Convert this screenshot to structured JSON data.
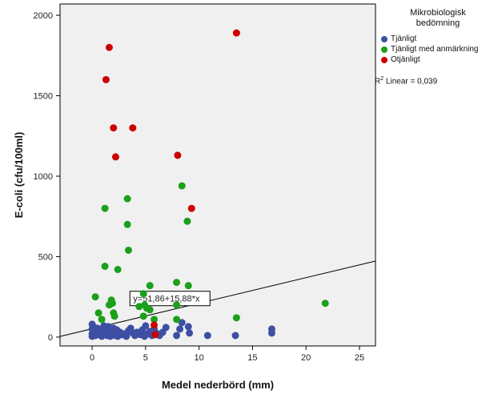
{
  "chart_data": {
    "type": "scatter",
    "xlabel": "Medel nederbörd (mm)",
    "ylabel": "E-coli (cfu/100ml)",
    "xlim": [
      -3,
      26.5
    ],
    "ylim": [
      -55,
      2070
    ],
    "xticks": [
      0,
      5,
      10,
      15,
      20,
      25
    ],
    "yticks": [
      0,
      500,
      1000,
      1500,
      2000
    ],
    "grid": false,
    "legend_placement": "right",
    "legend": {
      "title_line1": "Mikrobiologisk",
      "title_line2": "bedömning"
    },
    "series": [
      {
        "name": "Tjänligt",
        "color": "#3d4fa3",
        "points": [
          [
            0,
            80
          ],
          [
            0,
            50
          ],
          [
            0,
            20
          ],
          [
            0,
            5
          ],
          [
            0.1,
            40
          ],
          [
            0.2,
            60
          ],
          [
            0.3,
            10
          ],
          [
            0.4,
            30
          ],
          [
            0.5,
            55
          ],
          [
            0.6,
            15
          ],
          [
            0.7,
            45
          ],
          [
            0.8,
            25
          ],
          [
            0.9,
            5
          ],
          [
            1.0,
            35
          ],
          [
            1.1,
            70
          ],
          [
            1.2,
            20
          ],
          [
            1.3,
            50
          ],
          [
            1.4,
            10
          ],
          [
            1.5,
            65
          ],
          [
            1.6,
            30
          ],
          [
            1.7,
            5
          ],
          [
            1.8,
            40
          ],
          [
            1.9,
            15
          ],
          [
            2.0,
            55
          ],
          [
            2.1,
            25
          ],
          [
            2.2,
            10
          ],
          [
            2.3,
            45
          ],
          [
            2.4,
            5
          ],
          [
            2.6,
            30
          ],
          [
            2.8,
            15
          ],
          [
            3.0,
            20
          ],
          [
            3.2,
            5
          ],
          [
            3.4,
            40
          ],
          [
            3.6,
            55
          ],
          [
            3.8,
            25
          ],
          [
            4.0,
            10
          ],
          [
            4.2,
            30
          ],
          [
            4.5,
            15
          ],
          [
            4.7,
            45
          ],
          [
            4.9,
            5
          ],
          [
            5.0,
            70
          ],
          [
            5.2,
            20
          ],
          [
            5.4,
            35
          ],
          [
            5.6,
            10
          ],
          [
            5.8,
            50
          ],
          [
            6.0,
            25
          ],
          [
            6.3,
            10
          ],
          [
            6.6,
            30
          ],
          [
            6.9,
            60
          ],
          [
            7.9,
            10
          ],
          [
            8.2,
            50
          ],
          [
            8.4,
            90
          ],
          [
            9.0,
            65
          ],
          [
            9.1,
            25
          ],
          [
            10.8,
            10
          ],
          [
            13.4,
            10
          ],
          [
            16.8,
            50
          ],
          [
            16.8,
            25
          ]
        ]
      },
      {
        "name": "Tjänligt med anmärkning",
        "color": "#1aa01a",
        "points": [
          [
            1.2,
            800
          ],
          [
            1.2,
            440
          ],
          [
            0.3,
            250
          ],
          [
            0.6,
            150
          ],
          [
            0.9,
            110
          ],
          [
            1.6,
            200
          ],
          [
            1.8,
            230
          ],
          [
            1.9,
            210
          ],
          [
            2.0,
            150
          ],
          [
            2.1,
            130
          ],
          [
            2.4,
            420
          ],
          [
            3.3,
            860
          ],
          [
            3.3,
            700
          ],
          [
            3.4,
            540
          ],
          [
            4.4,
            190
          ],
          [
            4.8,
            270
          ],
          [
            4.8,
            130
          ],
          [
            4.9,
            200
          ],
          [
            5.1,
            180
          ],
          [
            5.4,
            320
          ],
          [
            5.4,
            170
          ],
          [
            5.8,
            110
          ],
          [
            7.9,
            340
          ],
          [
            7.9,
            200
          ],
          [
            7.9,
            110
          ],
          [
            8.4,
            940
          ],
          [
            8.9,
            720
          ],
          [
            9.0,
            320
          ],
          [
            13.5,
            120
          ],
          [
            21.8,
            210
          ]
        ]
      },
      {
        "name": "Otjänligt",
        "color": "#cc0000",
        "points": [
          [
            1.3,
            1600
          ],
          [
            1.6,
            1800
          ],
          [
            2.0,
            1300
          ],
          [
            2.2,
            1120
          ],
          [
            3.8,
            1300
          ],
          [
            5.8,
            75
          ],
          [
            5.9,
            15
          ],
          [
            8.0,
            1130
          ],
          [
            9.3,
            800
          ],
          [
            13.5,
            1890
          ]
        ]
      }
    ],
    "fit_line": {
      "intercept": 51.86,
      "slope": 15.88,
      "equation_label": "y=51,86+15,88*x",
      "label_x": 9.3,
      "label_y": 240
    },
    "r2_label": "R",
    "r2_sup": "2",
    "r2_text": " Linear = 0,039"
  }
}
